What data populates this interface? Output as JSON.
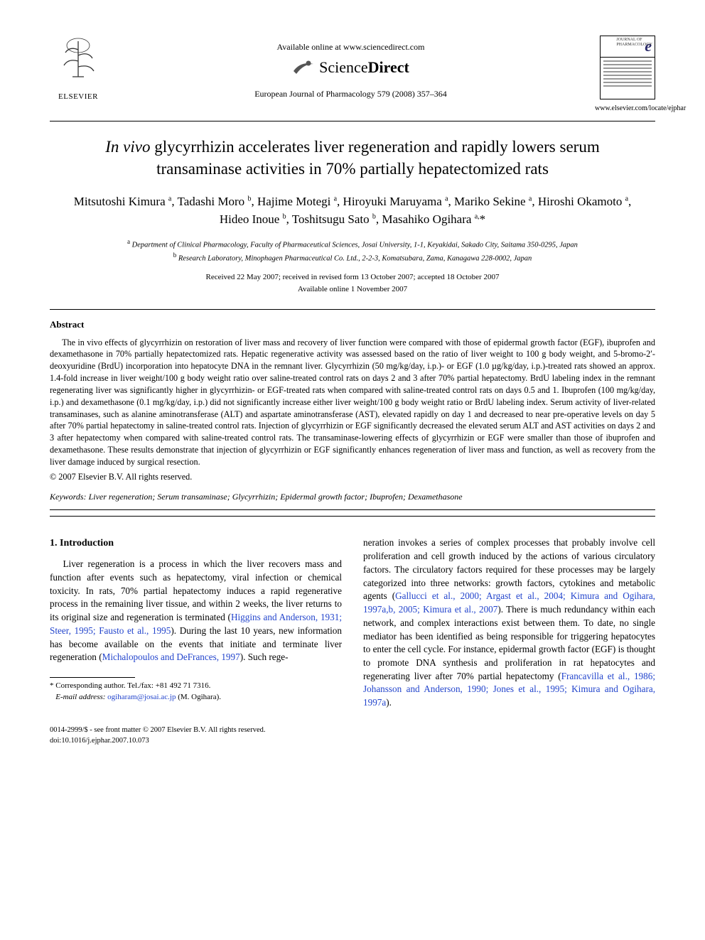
{
  "header": {
    "elsevier_label": "ELSEVIER",
    "available_online": "Available online at www.sciencedirect.com",
    "sciencedirect_a": "Science",
    "sciencedirect_b": "Direct",
    "journal_ref": "European Journal of Pharmacology 579 (2008) 357–364",
    "ejp_e": "e",
    "ejp_jp_1": "JOURNAL OF",
    "ejp_jp_2": "PHARMACOLOGY",
    "journal_url": "www.elsevier.com/locate/ejphar"
  },
  "title": {
    "prefix_italic": "In vivo",
    "rest": " glycyrrhizin accelerates liver regeneration and rapidly lowers serum transaminase activities in 70% partially hepatectomized rats"
  },
  "authors_html": "Mitsutoshi Kimura <sup>a</sup>, Tadashi Moro <sup>b</sup>, Hajime Motegi <sup>a</sup>, Hiroyuki Maruyama <sup>a</sup>, Mariko Sekine <sup>a</sup>, Hiroshi Okamoto <sup>a</sup>, Hideo Inoue <sup>b</sup>, Toshitsugu Sato <sup>b</sup>, Masahiko Ogihara <sup>a,</sup>*",
  "affiliations": {
    "a": "Department of Clinical Pharmacology, Faculty of Pharmaceutical Sciences, Josai University, 1-1, Keyakidai, Sakado City, Saitama 350-0295, Japan",
    "b": "Research Laboratory, Minophagen Pharmaceutical Co. Ltd., 2-2-3, Komatsubara, Zama, Kanagawa 228-0002, Japan"
  },
  "dates": {
    "line1": "Received 22 May 2007; received in revised form 13 October 2007; accepted 18 October 2007",
    "line2": "Available online 1 November 2007"
  },
  "abstract": {
    "heading": "Abstract",
    "body": "The in vivo effects of glycyrrhizin on restoration of liver mass and recovery of liver function were compared with those of epidermal growth factor (EGF), ibuprofen and dexamethasone in 70% partially hepatectomized rats. Hepatic regenerative activity was assessed based on the ratio of liver weight to 100 g body weight, and 5-bromo-2′-deoxyuridine (BrdU) incorporation into hepatocyte DNA in the remnant liver. Glycyrrhizin (50 mg/kg/day, i.p.)- or EGF (1.0 µg/kg/day, i.p.)-treated rats showed an approx. 1.4-fold increase in liver weight/100 g body weight ratio over saline-treated control rats on days 2 and 3 after 70% partial hepatectomy. BrdU labeling index in the remnant regenerating liver was significantly higher in glycyrrhizin- or EGF-treated rats when compared with saline-treated control rats on days 0.5 and 1. Ibuprofen (100 mg/kg/day, i.p.) and dexamethasone (0.1 mg/kg/day, i.p.) did not significantly increase either liver weight/100 g body weight ratio or BrdU labeling index. Serum activity of liver-related transaminases, such as alanine aminotransferase (ALT) and aspartate aminotransferase (AST), elevated rapidly on day 1 and decreased to near pre-operative levels on day 5 after 70% partial hepatectomy in saline-treated control rats. Injection of glycyrrhizin or EGF significantly decreased the elevated serum ALT and AST activities on days 2 and 3 after hepatectomy when compared with saline-treated control rats. The transaminase-lowering effects of glycyrrhizin or EGF were smaller than those of ibuprofen and dexamethasone. These results demonstrate that injection of glycyrrhizin or EGF significantly enhances regeneration of liver mass and function, as well as recovery from the liver damage induced by surgical resection.",
    "copyright": "© 2007 Elsevier B.V. All rights reserved."
  },
  "keywords": {
    "label": "Keywords:",
    "text": " Liver regeneration; Serum transaminase; Glycyrrhizin; Epidermal growth factor; Ibuprofen; Dexamethasone"
  },
  "intro": {
    "heading": "1. Introduction",
    "p1_a": "Liver regeneration is a process in which the liver recovers mass and function after events such as hepatectomy, viral infection or chemical toxicity. In rats, 70% partial hepatectomy induces a rapid regenerative process in the remaining liver tissue, and within 2 weeks, the liver returns to its original size and regeneration is terminated (",
    "p1_link1": "Higgins and Anderson, 1931; Steer, 1995; Fausto et al., 1995",
    "p1_b": "). During the last 10 years, new information has become available on the events that initiate and terminate liver regeneration (",
    "p1_link2": "Michalopoulos and DeFrances, 1997",
    "p1_c": "). Such rege-",
    "p2_a": "neration invokes a series of complex processes that probably involve cell proliferation and cell growth induced by the actions of various circulatory factors. The circulatory factors required for these processes may be largely categorized into three networks: growth factors, cytokines and metabolic agents (",
    "p2_link1": "Gallucci et al., 2000; Argast et al., 2004; Kimura and Ogihara, 1997a,b, 2005; Kimura et al., 2007",
    "p2_b": "). There is much redundancy within each network, and complex interactions exist between them. To date, no single mediator has been identified as being responsible for triggering hepatocytes to enter the cell cycle. For instance, epidermal growth factor (EGF) is thought to promote DNA synthesis and proliferation in rat hepatocytes and regenerating liver after 70% partial hepatectomy (",
    "p2_link2": "Francavilla et al., 1986; Johansson and Anderson, 1990; Jones et al., 1995; Kimura and Ogihara, 1997a",
    "p2_c": ")."
  },
  "footnote": {
    "corr": "* Corresponding author. Tel./fax: +81 492 71 7316.",
    "email_label": "E-mail address:",
    "email": " ogiharam@josai.ac.jp ",
    "email_tail": "(M. Ogihara)."
  },
  "footer": {
    "line1": "0014-2999/$ - see front matter © 2007 Elsevier B.V. All rights reserved.",
    "line2": "doi:10.1016/j.ejphar.2007.10.073"
  }
}
